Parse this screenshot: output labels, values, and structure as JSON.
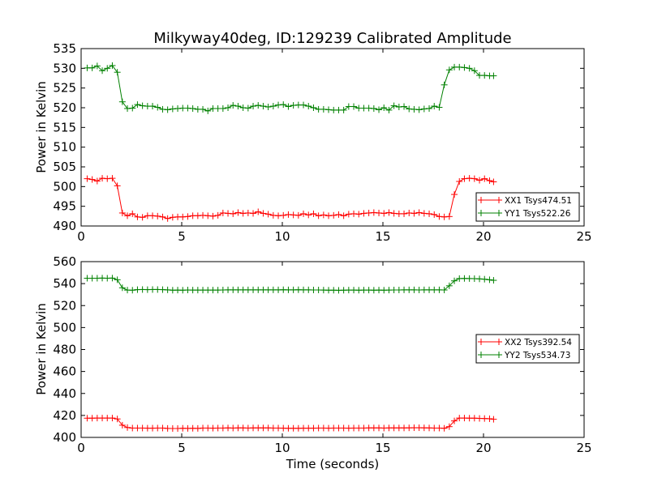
{
  "chart_data": [
    {
      "type": "line",
      "title": "Milkyway40deg, ID:129239 Calibrated Amplitude",
      "xlabel": "",
      "ylabel": "Power in Kelvin",
      "xlim": [
        0,
        25
      ],
      "ylim": [
        490,
        535
      ],
      "x_ticks": [
        "0",
        "5",
        "10",
        "15",
        "20",
        "25"
      ],
      "y_ticks": [
        "490",
        "495",
        "500",
        "505",
        "510",
        "515",
        "520",
        "525",
        "530",
        "535"
      ],
      "grid": false,
      "legend_position": "lower-right",
      "x": [
        0.3,
        0.55,
        0.8,
        1.05,
        1.3,
        1.55,
        1.8,
        2.05,
        2.3,
        2.55,
        2.8,
        3.05,
        3.3,
        3.55,
        3.8,
        4.05,
        4.3,
        4.55,
        4.8,
        5.05,
        5.3,
        5.55,
        5.8,
        6.05,
        6.3,
        6.55,
        6.8,
        7.05,
        7.3,
        7.55,
        7.8,
        8.05,
        8.3,
        8.55,
        8.8,
        9.05,
        9.3,
        9.55,
        9.8,
        10.05,
        10.3,
        10.55,
        10.8,
        11.05,
        11.3,
        11.55,
        11.8,
        12.05,
        12.3,
        12.55,
        12.8,
        13.05,
        13.3,
        13.55,
        13.8,
        14.05,
        14.3,
        14.55,
        14.8,
        15.05,
        15.3,
        15.55,
        15.8,
        16.05,
        16.3,
        16.55,
        16.8,
        17.05,
        17.3,
        17.55,
        17.8,
        18.05,
        18.3,
        18.55,
        18.8,
        19.05,
        19.3,
        19.55,
        19.8,
        20.05,
        20.3,
        20.5
      ],
      "series": [
        {
          "name": "XX1 Tsys474.51",
          "color": "#ff0000",
          "values": [
            502.0,
            501.8,
            501.4,
            502.1,
            502.0,
            502.1,
            500.2,
            493.3,
            492.6,
            493.1,
            492.3,
            492.2,
            492.6,
            492.6,
            492.5,
            492.3,
            491.9,
            492.2,
            492.3,
            492.3,
            492.4,
            492.6,
            492.6,
            492.7,
            492.6,
            492.5,
            492.7,
            493.3,
            493.2,
            493.1,
            493.4,
            493.2,
            493.3,
            493.2,
            493.6,
            493.2,
            493.0,
            492.7,
            492.6,
            492.7,
            492.9,
            492.8,
            492.7,
            493.1,
            492.8,
            493.1,
            492.6,
            492.8,
            492.6,
            492.7,
            492.9,
            492.6,
            493.0,
            493.1,
            493.0,
            493.2,
            493.3,
            493.4,
            493.3,
            493.2,
            493.4,
            493.2,
            493.1,
            493.1,
            493.3,
            493.2,
            493.4,
            493.2,
            493.1,
            492.9,
            492.4,
            492.3,
            492.4,
            498.0,
            501.3,
            502.0,
            502.1,
            502.0,
            501.6,
            502.0,
            501.5,
            501.2
          ]
        },
        {
          "name": "YY1 Tsys522.26",
          "color": "#008000",
          "values": [
            530.1,
            530.1,
            530.6,
            529.4,
            530.0,
            530.7,
            529.0,
            521.5,
            519.8,
            519.9,
            520.8,
            520.5,
            520.4,
            520.4,
            520.1,
            519.6,
            519.5,
            519.7,
            519.8,
            519.9,
            519.9,
            519.8,
            519.6,
            519.6,
            519.2,
            519.8,
            519.8,
            519.8,
            520.0,
            520.6,
            520.4,
            520.0,
            519.9,
            520.4,
            520.6,
            520.4,
            520.2,
            520.4,
            520.7,
            520.8,
            520.3,
            520.6,
            520.7,
            520.7,
            520.4,
            520.0,
            519.6,
            519.6,
            519.5,
            519.4,
            519.4,
            519.4,
            520.3,
            520.3,
            519.9,
            519.9,
            519.9,
            519.8,
            519.5,
            520.0,
            519.4,
            520.5,
            520.2,
            520.3,
            519.7,
            519.6,
            519.5,
            519.7,
            519.8,
            520.4,
            520.1,
            525.8,
            529.6,
            530.3,
            530.3,
            530.2,
            530.0,
            529.4,
            528.2,
            528.2,
            528.1,
            528.1
          ]
        }
      ]
    },
    {
      "type": "line",
      "title": "",
      "xlabel": "Time (seconds)",
      "ylabel": "Power in Kelvin",
      "xlim": [
        0,
        25
      ],
      "ylim": [
        400,
        560
      ],
      "x_ticks": [
        "0",
        "5",
        "10",
        "15",
        "20",
        "25"
      ],
      "y_ticks": [
        "400",
        "420",
        "440",
        "460",
        "480",
        "500",
        "520",
        "540",
        "560"
      ],
      "grid": false,
      "legend_position": "center-right",
      "x": [
        0.3,
        0.55,
        0.8,
        1.05,
        1.3,
        1.55,
        1.8,
        2.05,
        2.3,
        2.55,
        2.8,
        3.05,
        3.3,
        3.55,
        3.8,
        4.05,
        4.3,
        4.55,
        4.8,
        5.05,
        5.3,
        5.55,
        5.8,
        6.05,
        6.3,
        6.55,
        6.8,
        7.05,
        7.3,
        7.55,
        7.8,
        8.05,
        8.3,
        8.55,
        8.8,
        9.05,
        9.3,
        9.55,
        9.8,
        10.05,
        10.3,
        10.55,
        10.8,
        11.05,
        11.3,
        11.55,
        11.8,
        12.05,
        12.3,
        12.55,
        12.8,
        13.05,
        13.3,
        13.55,
        13.8,
        14.05,
        14.3,
        14.55,
        14.8,
        15.05,
        15.3,
        15.55,
        15.8,
        16.05,
        16.3,
        16.55,
        16.8,
        17.05,
        17.3,
        17.55,
        17.8,
        18.05,
        18.3,
        18.55,
        18.8,
        19.05,
        19.3,
        19.55,
        19.8,
        20.05,
        20.3,
        20.5
      ],
      "series": [
        {
          "name": "XX2 Tsys392.54",
          "color": "#ff0000",
          "values": [
            417.5,
            417.5,
            417.6,
            417.6,
            417.6,
            417.6,
            416.8,
            411.1,
            409.0,
            408.5,
            408.5,
            408.5,
            408.4,
            408.4,
            408.5,
            408.5,
            408.2,
            408.1,
            408.1,
            408.3,
            408.2,
            408.3,
            408.2,
            408.5,
            408.5,
            408.4,
            408.5,
            408.5,
            408.6,
            408.5,
            408.6,
            408.6,
            408.5,
            408.6,
            408.6,
            408.6,
            408.6,
            408.5,
            408.5,
            408.4,
            408.3,
            408.3,
            408.3,
            408.4,
            408.4,
            408.4,
            408.5,
            408.5,
            408.4,
            408.5,
            408.5,
            408.5,
            408.4,
            408.5,
            408.5,
            408.5,
            408.6,
            408.6,
            408.6,
            408.5,
            408.6,
            408.6,
            408.6,
            408.6,
            408.7,
            408.8,
            408.8,
            408.7,
            408.6,
            408.5,
            408.5,
            408.3,
            409.8,
            415.0,
            417.6,
            417.6,
            417.5,
            417.5,
            417.3,
            417.2,
            417.0,
            416.5
          ]
        },
        {
          "name": "YY2 Tsys534.73",
          "color": "#008000",
          "values": [
            544.9,
            544.9,
            544.9,
            545.0,
            544.9,
            545.0,
            543.5,
            536.2,
            534.1,
            534.0,
            534.5,
            534.6,
            534.5,
            534.6,
            534.6,
            534.5,
            534.3,
            534.0,
            534.1,
            534.0,
            534.2,
            534.1,
            534.1,
            534.1,
            534.1,
            534.1,
            534.1,
            534.2,
            534.3,
            534.3,
            534.3,
            534.3,
            534.3,
            534.3,
            534.3,
            534.3,
            534.3,
            534.3,
            534.3,
            534.4,
            534.3,
            534.3,
            534.4,
            534.3,
            534.3,
            534.2,
            534.2,
            534.1,
            534.0,
            534.0,
            533.9,
            534.0,
            534.1,
            534.1,
            534.0,
            534.1,
            534.1,
            534.0,
            534.1,
            534.0,
            534.1,
            534.2,
            534.2,
            534.3,
            534.3,
            534.3,
            534.2,
            534.3,
            534.3,
            534.3,
            534.3,
            534.2,
            538.0,
            542.5,
            544.6,
            544.7,
            544.6,
            544.5,
            544.3,
            544.0,
            543.5,
            543.0
          ]
        }
      ]
    }
  ]
}
